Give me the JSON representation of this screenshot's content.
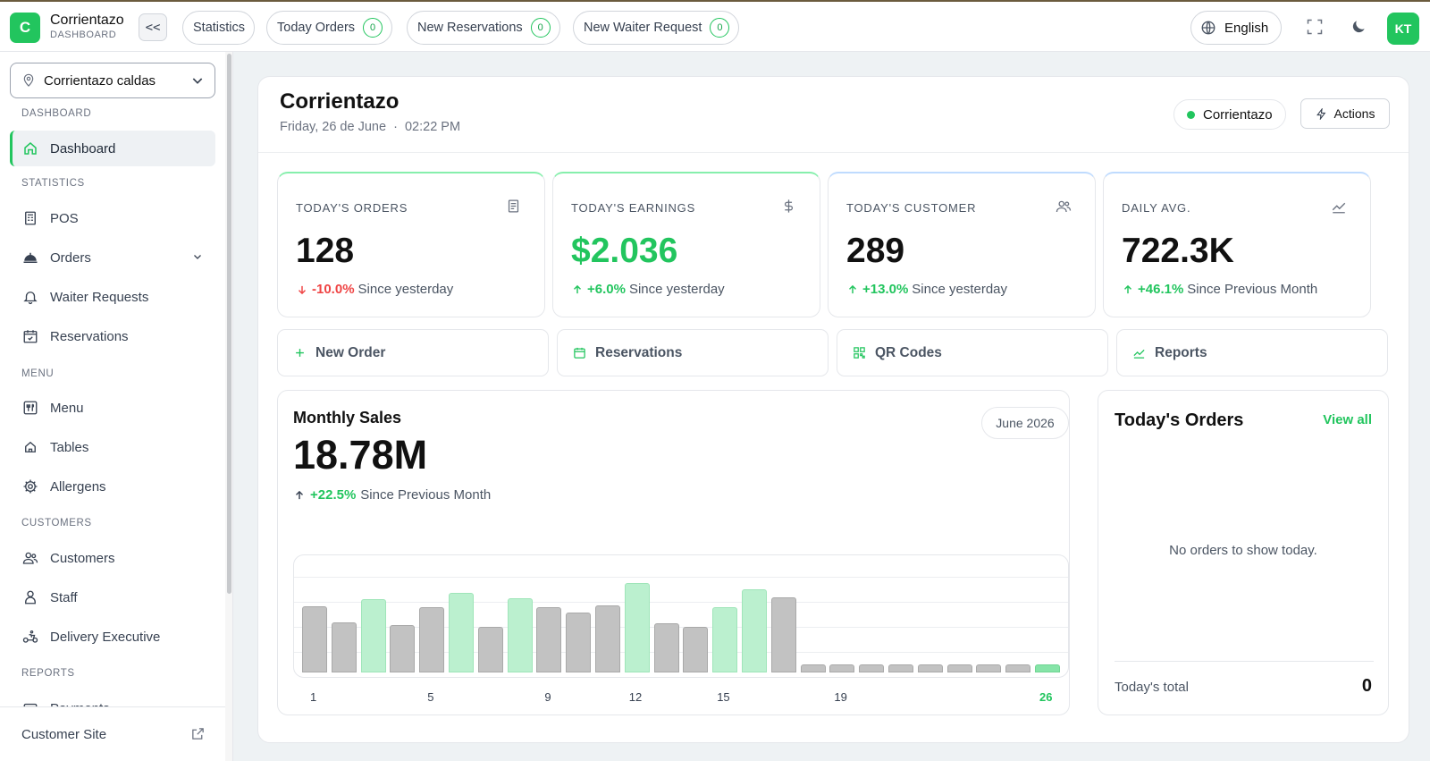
{
  "topbar": {
    "logo_letter": "C",
    "brand": "Corrientazo",
    "brand_sub": "DASHBOARD",
    "collapse_label": "<<",
    "pills": [
      {
        "label": "Statistics"
      },
      {
        "label": "Today Orders",
        "count": "0"
      },
      {
        "label": "New Reservations",
        "count": "0"
      },
      {
        "label": "New Waiter Request",
        "count": "0"
      }
    ],
    "language": "English",
    "avatar": "KT"
  },
  "sidebar": {
    "location": "Corrientazo caldas",
    "sections": {
      "dashboard": "DASHBOARD",
      "statistics": "STATISTICS",
      "menu": "MENU",
      "customers": "CUSTOMERS",
      "reports": "REPORTS"
    },
    "items": {
      "dashboard": "Dashboard",
      "pos": "POS",
      "orders": "Orders",
      "waiter_requests": "Waiter Requests",
      "reservations": "Reservations",
      "menu": "Menu",
      "tables": "Tables",
      "allergens": "Allergens",
      "customers": "Customers",
      "staff": "Staff",
      "delivery": "Delivery Executive",
      "payments": "Payments"
    },
    "footer": "Customer Site"
  },
  "header": {
    "title": "Corrientazo",
    "date": "Friday, 26 de June",
    "time": "02:22 PM",
    "restaurant": "Corrientazo",
    "actions": "Actions"
  },
  "stats": [
    {
      "label": "TODAY'S ORDERS",
      "value": "128",
      "change": "-10.0%",
      "direction": "down",
      "since": "Since yesterday",
      "icon": "receipt-icon"
    },
    {
      "label": "TODAY'S EARNINGS",
      "value": "$2.036",
      "change": "+6.0%",
      "direction": "up",
      "since": "Since yesterday",
      "icon": "dollar-icon"
    },
    {
      "label": "TODAY'S CUSTOMER",
      "value": "289",
      "change": "+13.0%",
      "direction": "up",
      "since": "Since yesterday",
      "icon": "users-icon"
    },
    {
      "label": "DAILY AVG.",
      "value": "722.3K",
      "change": "+46.1%",
      "direction": "up",
      "since": "Since Previous Month",
      "icon": "trend-icon"
    }
  ],
  "quick_actions": [
    "New Order",
    "Reservations",
    "QR Codes",
    "Reports"
  ],
  "sales": {
    "title": "Monthly Sales",
    "value": "18.78M",
    "change": "+22.5%",
    "since": "Since Previous Month",
    "month": "June 2026"
  },
  "chart_data": {
    "type": "bar",
    "categories": [
      "1",
      "2",
      "3",
      "4",
      "5",
      "6",
      "7",
      "8",
      "9",
      "10",
      "11",
      "12",
      "13",
      "14",
      "15",
      "16",
      "17",
      "18",
      "19",
      "20",
      "21",
      "22",
      "23",
      "24",
      "25",
      "26"
    ],
    "values": [
      71,
      54,
      79,
      51,
      70,
      86,
      49,
      80,
      70,
      64,
      72,
      96,
      53,
      49,
      70,
      89,
      81,
      9,
      9,
      9,
      9,
      9,
      9,
      9,
      9,
      9
    ],
    "highlighted": [
      3,
      6,
      8,
      12,
      15,
      16,
      26
    ],
    "active_day": "26",
    "tick_labels": [
      "1",
      "5",
      "9",
      "12",
      "15",
      "19",
      "26"
    ],
    "title": "",
    "xlabel": "",
    "ylabel": "",
    "colors": {
      "normal": "#c2c2c2",
      "highlight": "#bbf0cf",
      "active": "#86e4a8"
    }
  },
  "orders": {
    "title": "Today's Orders",
    "view_all": "View all",
    "empty": "No orders to show today.",
    "total_label": "Today's total",
    "total_value": "0"
  },
  "colors": {
    "accent": "#22c55e",
    "danger": "#ef4444"
  }
}
